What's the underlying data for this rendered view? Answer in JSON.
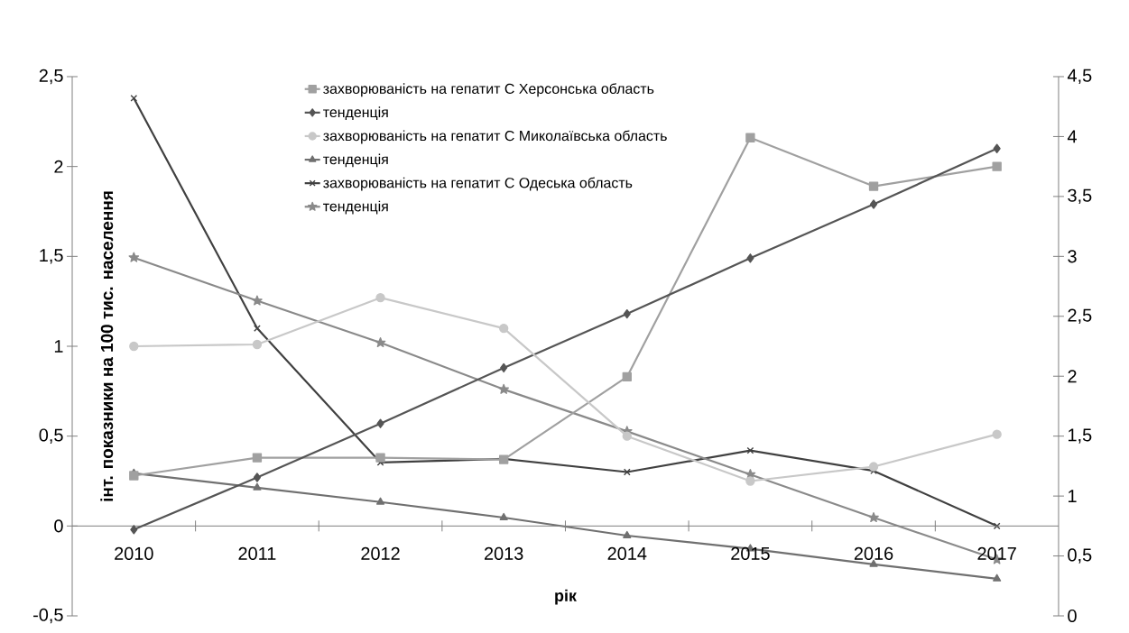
{
  "chart_data": {
    "type": "line",
    "xlabel": "рік",
    "ylabel": "інт. показники на 100 тис. населення",
    "categories": [
      "2010",
      "2011",
      "2012",
      "2013",
      "2014",
      "2015",
      "2016",
      "2017"
    ],
    "ylim": [
      -0.5,
      2.5
    ],
    "yticks": [
      {
        "value": -0.5,
        "label": "-0,5"
      },
      0,
      {
        "value": 0.5,
        "label": "0,5"
      },
      1,
      {
        "value": 1.5,
        "label": "1,5"
      },
      2,
      {
        "value": 2.5,
        "label": "2,5"
      }
    ],
    "y2lim": [
      0,
      4.5
    ],
    "y2ticks": [
      0,
      {
        "value": 0.5,
        "label": "0,5"
      },
      1,
      {
        "value": 1.5,
        "label": "1,5"
      },
      2,
      {
        "value": 2.5,
        "label": "2,5"
      },
      3,
      {
        "value": 3.5,
        "label": "3,5"
      },
      4,
      {
        "value": 4.5,
        "label": "4,5"
      }
    ],
    "legend": "top",
    "series": [
      {
        "name": "захворюваність на гепатит С Херсонська область",
        "color": "#a0a0a0",
        "marker": "square",
        "values": [
          0.28,
          0.38,
          0.38,
          0.37,
          0.83,
          2.16,
          1.89,
          2.0
        ]
      },
      {
        "name": "тенденція",
        "color": "#555555",
        "marker": "diamond",
        "values": [
          -0.02,
          0.27,
          0.57,
          0.88,
          1.18,
          1.49,
          1.79,
          2.1
        ]
      },
      {
        "name": "захворюваність на гепатит С Миколаївська область",
        "color": "#c8c8c8",
        "marker": "circle",
        "values": [
          1.0,
          1.01,
          1.27,
          1.1,
          0.5,
          0.25,
          0.33,
          0.51
        ]
      },
      {
        "name": "тенденція",
        "color": "#707070",
        "marker": "triangle",
        "axis": "y2",
        "values": [
          1.19,
          1.07,
          0.95,
          0.82,
          0.67,
          0.56,
          0.43,
          0.31
        ]
      },
      {
        "name": "захворюваність на гепатит С Одеська область",
        "color": "#404040",
        "marker": "cross",
        "axis": "y2",
        "values": [
          4.32,
          2.4,
          1.28,
          1.31,
          1.2,
          1.38,
          1.21,
          0.75
        ]
      },
      {
        "name": "тенденція",
        "color": "#8a8a8a",
        "marker": "star",
        "axis": "y2",
        "values": [
          2.99,
          2.63,
          2.28,
          1.89,
          1.54,
          1.18,
          0.82,
          0.47
        ]
      }
    ]
  }
}
